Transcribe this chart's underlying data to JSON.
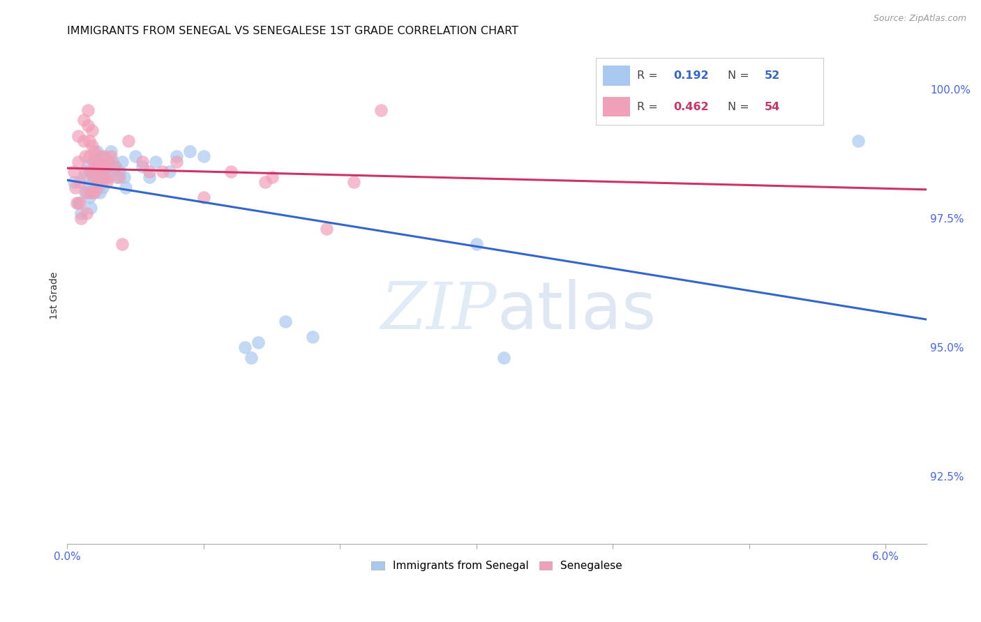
{
  "title": "IMMIGRANTS FROM SENEGAL VS SENEGALESE 1ST GRADE CORRELATION CHART",
  "source": "Source: ZipAtlas.com",
  "ylabel": "1st Grade",
  "right_yticks": [
    "100.0%",
    "97.5%",
    "95.0%",
    "92.5%"
  ],
  "right_ytick_vals": [
    1.0,
    0.975,
    0.95,
    0.925
  ],
  "xlim": [
    0.0,
    0.063
  ],
  "ylim": [
    0.912,
    1.008
  ],
  "legend_blue_r": "0.192",
  "legend_blue_n": "52",
  "legend_pink_r": "0.462",
  "legend_pink_n": "54",
  "blue_color": "#A8C8F0",
  "pink_color": "#F0A0B8",
  "blue_line_color": "#3366CC",
  "pink_line_color": "#CC3366",
  "blue_scatter": [
    [
      0.0005,
      0.982
    ],
    [
      0.0008,
      0.978
    ],
    [
      0.001,
      0.976
    ],
    [
      0.0012,
      0.983
    ],
    [
      0.0013,
      0.98
    ],
    [
      0.0015,
      0.985
    ],
    [
      0.0015,
      0.981
    ],
    [
      0.0016,
      0.979
    ],
    [
      0.0017,
      0.977
    ],
    [
      0.0018,
      0.984
    ],
    [
      0.0018,
      0.982
    ],
    [
      0.0019,
      0.98
    ],
    [
      0.002,
      0.986
    ],
    [
      0.002,
      0.984
    ],
    [
      0.0021,
      0.982
    ],
    [
      0.0022,
      0.988
    ],
    [
      0.0022,
      0.986
    ],
    [
      0.0023,
      0.984
    ],
    [
      0.0023,
      0.982
    ],
    [
      0.0024,
      0.98
    ],
    [
      0.0025,
      0.987
    ],
    [
      0.0025,
      0.985
    ],
    [
      0.0026,
      0.983
    ],
    [
      0.0026,
      0.981
    ],
    [
      0.0028,
      0.985
    ],
    [
      0.0028,
      0.983
    ],
    [
      0.003,
      0.986
    ],
    [
      0.003,
      0.984
    ],
    [
      0.0032,
      0.988
    ],
    [
      0.0033,
      0.986
    ],
    [
      0.0035,
      0.985
    ],
    [
      0.0036,
      0.983
    ],
    [
      0.0038,
      0.984
    ],
    [
      0.004,
      0.986
    ],
    [
      0.0042,
      0.983
    ],
    [
      0.0043,
      0.981
    ],
    [
      0.005,
      0.987
    ],
    [
      0.0055,
      0.985
    ],
    [
      0.006,
      0.983
    ],
    [
      0.0065,
      0.986
    ],
    [
      0.0075,
      0.984
    ],
    [
      0.008,
      0.987
    ],
    [
      0.009,
      0.988
    ],
    [
      0.01,
      0.987
    ],
    [
      0.013,
      0.95
    ],
    [
      0.0135,
      0.948
    ],
    [
      0.014,
      0.951
    ],
    [
      0.016,
      0.955
    ],
    [
      0.018,
      0.952
    ],
    [
      0.03,
      0.97
    ],
    [
      0.032,
      0.948
    ],
    [
      0.058,
      0.99
    ]
  ],
  "pink_scatter": [
    [
      0.0005,
      0.984
    ],
    [
      0.0006,
      0.981
    ],
    [
      0.0007,
      0.978
    ],
    [
      0.0008,
      0.991
    ],
    [
      0.0008,
      0.986
    ],
    [
      0.0009,
      0.982
    ],
    [
      0.0009,
      0.978
    ],
    [
      0.001,
      0.975
    ],
    [
      0.0012,
      0.994
    ],
    [
      0.0012,
      0.99
    ],
    [
      0.0013,
      0.987
    ],
    [
      0.0013,
      0.984
    ],
    [
      0.0014,
      0.98
    ],
    [
      0.0014,
      0.976
    ],
    [
      0.0015,
      0.996
    ],
    [
      0.0015,
      0.993
    ],
    [
      0.0016,
      0.99
    ],
    [
      0.0016,
      0.987
    ],
    [
      0.0017,
      0.984
    ],
    [
      0.0017,
      0.98
    ],
    [
      0.0018,
      0.992
    ],
    [
      0.0018,
      0.989
    ],
    [
      0.0019,
      0.986
    ],
    [
      0.0019,
      0.983
    ],
    [
      0.002,
      0.98
    ],
    [
      0.002,
      0.988
    ],
    [
      0.0021,
      0.985
    ],
    [
      0.0022,
      0.983
    ],
    [
      0.0022,
      0.981
    ],
    [
      0.0023,
      0.985
    ],
    [
      0.0024,
      0.987
    ],
    [
      0.0025,
      0.985
    ],
    [
      0.0026,
      0.983
    ],
    [
      0.0027,
      0.987
    ],
    [
      0.0028,
      0.985
    ],
    [
      0.0029,
      0.982
    ],
    [
      0.003,
      0.986
    ],
    [
      0.003,
      0.983
    ],
    [
      0.0032,
      0.987
    ],
    [
      0.0035,
      0.985
    ],
    [
      0.0038,
      0.983
    ],
    [
      0.004,
      0.97
    ],
    [
      0.0045,
      0.99
    ],
    [
      0.0055,
      0.986
    ],
    [
      0.006,
      0.984
    ],
    [
      0.007,
      0.984
    ],
    [
      0.008,
      0.986
    ],
    [
      0.01,
      0.979
    ],
    [
      0.012,
      0.984
    ],
    [
      0.0145,
      0.982
    ],
    [
      0.015,
      0.983
    ],
    [
      0.019,
      0.973
    ],
    [
      0.021,
      0.982
    ],
    [
      0.023,
      0.996
    ]
  ],
  "watermark_zip": "ZIP",
  "watermark_atlas": "atlas",
  "grid_color": "#DDDDDD",
  "background_color": "#FFFFFF",
  "title_fontsize": 11.5,
  "axis_tick_color": "#4466EE",
  "ylabel_color": "#333333"
}
